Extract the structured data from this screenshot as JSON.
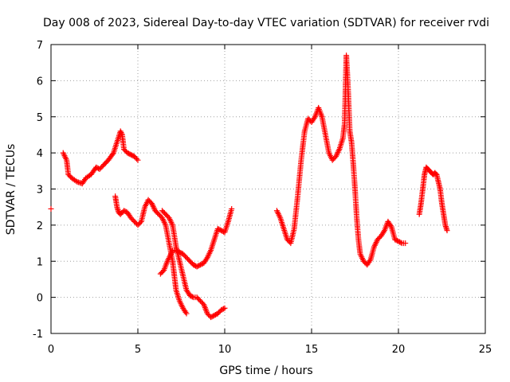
{
  "chart_data": {
    "type": "scatter",
    "title": "Day 008 of 2023, Sidereal Day-to-day VTEC variation (SDTVAR) for receiver rvdi",
    "xlabel": "GPS time / hours",
    "ylabel": "SDTVAR / TECUs",
    "xlim": [
      0,
      25
    ],
    "ylim": [
      -1,
      7
    ],
    "xticks": [
      "0",
      "5",
      "10",
      "15",
      "20",
      "25"
    ],
    "yticks": [
      "-1",
      "0",
      "1",
      "2",
      "3",
      "4",
      "5",
      "6",
      "7"
    ],
    "grid": true,
    "marker": "+",
    "color": "#ff0000",
    "series": [
      {
        "name": "seg0",
        "x": [
          0.0
        ],
        "y": [
          2.45
        ]
      },
      {
        "name": "seg1",
        "x": [
          0.7,
          0.9,
          1.0,
          1.2,
          1.5,
          1.8,
          2.0,
          2.3,
          2.6,
          2.8,
          3.0,
          3.3,
          3.6,
          3.8,
          4.0,
          4.1,
          4.2,
          4.4,
          4.6,
          4.8,
          5.0
        ],
        "y": [
          4.0,
          3.8,
          3.4,
          3.3,
          3.2,
          3.15,
          3.3,
          3.4,
          3.6,
          3.55,
          3.65,
          3.8,
          4.0,
          4.3,
          4.6,
          4.5,
          4.1,
          4.0,
          3.95,
          3.9,
          3.8
        ]
      },
      {
        "name": "seg2",
        "x": [
          3.7,
          3.8,
          3.9,
          4.0,
          4.2,
          4.4,
          4.6,
          4.8,
          5.0,
          5.2,
          5.4,
          5.6,
          5.8,
          6.0,
          6.2,
          6.4,
          6.6,
          6.8,
          7.0,
          7.1,
          7.2,
          7.4,
          7.6,
          7.8
        ],
        "y": [
          2.8,
          2.5,
          2.35,
          2.3,
          2.4,
          2.35,
          2.2,
          2.1,
          2.0,
          2.1,
          2.5,
          2.7,
          2.6,
          2.4,
          2.3,
          2.2,
          2.0,
          1.5,
          1.0,
          0.6,
          0.2,
          -0.1,
          -0.3,
          -0.45
        ]
      },
      {
        "name": "seg3",
        "x": [
          6.3,
          6.5,
          6.7,
          6.9,
          7.0,
          7.2,
          7.4,
          7.6,
          7.8,
          8.0,
          8.2,
          8.4,
          8.6,
          8.8,
          9.0,
          9.2,
          9.4,
          9.6,
          9.8,
          10.0,
          10.2,
          10.4
        ],
        "y": [
          0.65,
          0.75,
          1.0,
          1.2,
          1.3,
          1.3,
          1.25,
          1.2,
          1.1,
          1.0,
          0.9,
          0.85,
          0.9,
          0.95,
          1.1,
          1.3,
          1.6,
          1.9,
          1.85,
          1.8,
          2.1,
          2.45
        ]
      },
      {
        "name": "seg4",
        "x": [
          6.4,
          6.6,
          6.8,
          7.0,
          7.2,
          7.4,
          7.6,
          7.8,
          8.0,
          8.2,
          8.4,
          8.6,
          8.8,
          9.0,
          9.2,
          9.4,
          9.6,
          9.8,
          10.0
        ],
        "y": [
          2.4,
          2.3,
          2.2,
          2.0,
          1.4,
          1.0,
          0.6,
          0.2,
          0.05,
          0.0,
          0.0,
          -0.1,
          -0.2,
          -0.45,
          -0.55,
          -0.5,
          -0.45,
          -0.35,
          -0.3
        ]
      },
      {
        "name": "seg5",
        "x": [
          13.0,
          13.2,
          13.4,
          13.6,
          13.8,
          14.0,
          14.2,
          14.4,
          14.6,
          14.8,
          15.0,
          15.2,
          15.4,
          15.6,
          15.8,
          16.0,
          16.2,
          16.4,
          16.6,
          16.8,
          16.9,
          17.0,
          17.1,
          17.2,
          17.3,
          17.4,
          17.5,
          17.6,
          17.7,
          17.8,
          18.0,
          18.2,
          18.4,
          18.6,
          18.8,
          19.0,
          19.2,
          19.4,
          19.6,
          19.8,
          20.0,
          20.2,
          20.4
        ],
        "y": [
          2.4,
          2.2,
          1.9,
          1.6,
          1.5,
          1.9,
          2.8,
          3.8,
          4.6,
          4.95,
          4.85,
          5.0,
          5.25,
          5.0,
          4.5,
          4.0,
          3.8,
          3.9,
          4.1,
          4.4,
          4.8,
          6.7,
          5.8,
          4.6,
          4.3,
          3.7,
          3.0,
          2.2,
          1.6,
          1.2,
          1.0,
          0.9,
          1.05,
          1.4,
          1.6,
          1.7,
          1.85,
          2.1,
          1.95,
          1.6,
          1.55,
          1.5,
          1.5
        ]
      },
      {
        "name": "seg6",
        "x": [
          21.2,
          21.3,
          21.4,
          21.5,
          21.6,
          21.7,
          21.8,
          21.9,
          22.0,
          22.1,
          22.2,
          22.3,
          22.4,
          22.5,
          22.6,
          22.7,
          22.8
        ],
        "y": [
          2.3,
          2.6,
          3.0,
          3.4,
          3.6,
          3.55,
          3.5,
          3.45,
          3.4,
          3.45,
          3.4,
          3.2,
          3.0,
          2.6,
          2.3,
          2.0,
          1.85
        ]
      }
    ]
  }
}
